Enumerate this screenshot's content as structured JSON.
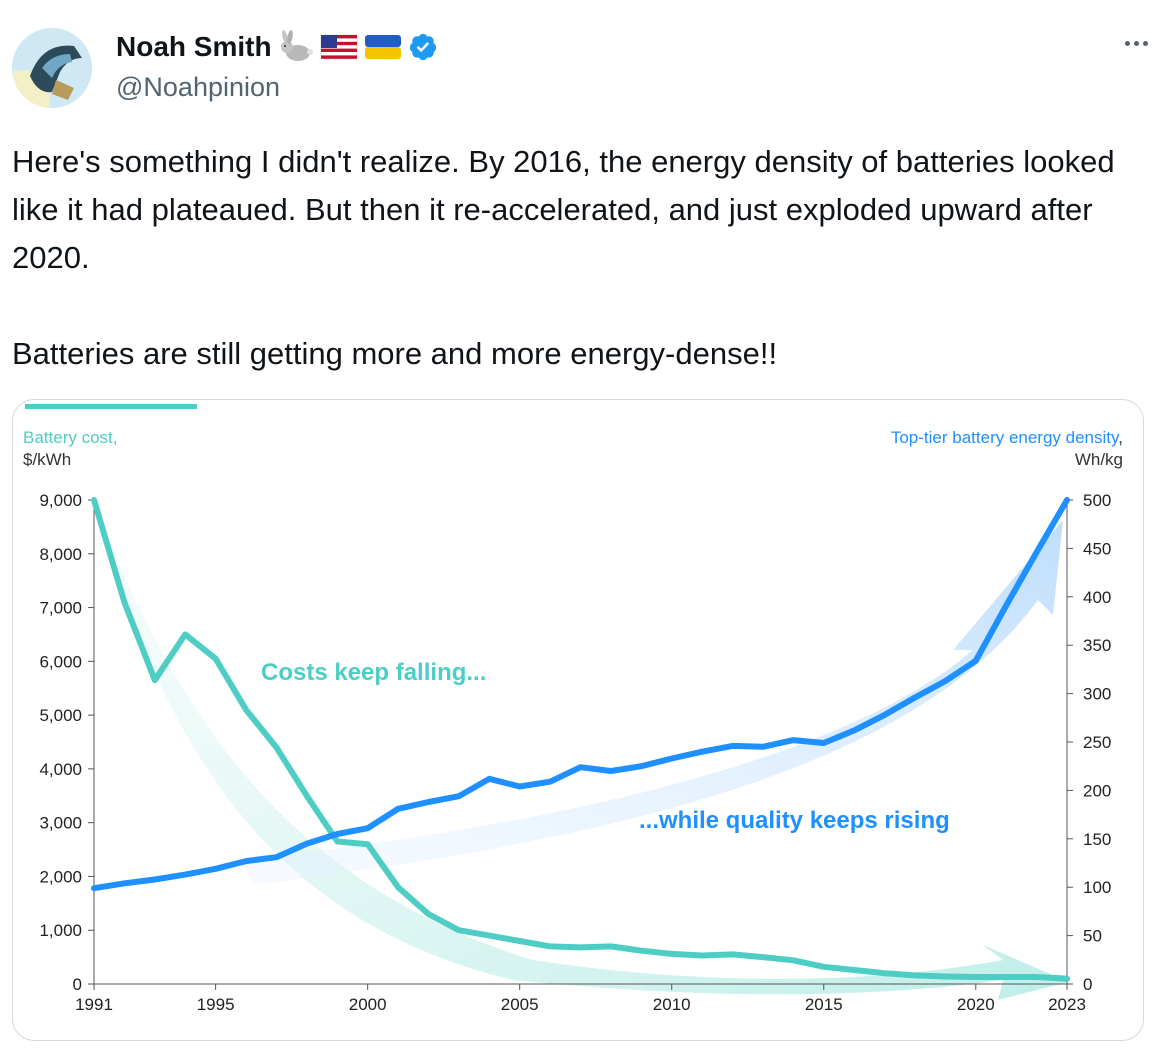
{
  "tweet": {
    "author_name": "Noah Smith",
    "author_handle": "@Noahpinion",
    "verified": true,
    "name_emojis": [
      "rabbit-emoji",
      "us-flag",
      "ukraine-flag"
    ],
    "paragraphs": [
      "Here's something I didn't realize. By 2016, the energy density of batteries looked like it had plateaued. But then it re-accelerated, and just exploded upward after 2020.",
      "Batteries are still getting more and more energy-dense!!"
    ]
  },
  "colors": {
    "cost": "#4ecdc4",
    "density": "#1e90ff",
    "verified": "#1d9bf0",
    "text": "#0f1419",
    "muted": "#536471"
  },
  "chart_data": {
    "type": "line",
    "left_axis_label_line1": "Battery cost,",
    "left_axis_label_line2": "$/kWh",
    "right_axis_label_line1": "Top-tier battery energy density",
    "right_axis_label_comma": ",",
    "right_axis_label_line2": "Wh/kg",
    "x_ticks": [
      1991,
      1995,
      2000,
      2005,
      2010,
      2015,
      2020,
      2023
    ],
    "xlim": [
      1991,
      2023
    ],
    "left_ylim": [
      0,
      9000
    ],
    "left_ticks": [
      0,
      1000,
      2000,
      3000,
      4000,
      5000,
      6000,
      7000,
      8000,
      9000
    ],
    "left_tick_labels": [
      "0",
      "1,000",
      "2,000",
      "3,000",
      "4,000",
      "5,000",
      "6,000",
      "7,000",
      "8,000",
      "9,000"
    ],
    "right_ylim": [
      0,
      500
    ],
    "right_ticks": [
      0,
      50,
      100,
      150,
      200,
      250,
      300,
      350,
      400,
      450,
      500
    ],
    "annotations": {
      "cost": "Costs keep falling...",
      "density": "...while quality keeps rising"
    },
    "series": [
      {
        "axis": "left",
        "x": [
          1991,
          1992,
          1993,
          1994,
          1995,
          1996,
          1997,
          1998,
          1999,
          2000,
          2001,
          2002,
          2003,
          2004,
          2005,
          2006,
          2007,
          2008,
          2009,
          2010,
          2011,
          2012,
          2013,
          2014,
          2015,
          2016,
          2017,
          2018,
          2019,
          2020,
          2021,
          2022,
          2023
        ],
        "values": [
          9000,
          7100,
          5650,
          6500,
          6050,
          5100,
          4400,
          3500,
          2650,
          2600,
          1800,
          1300,
          1000,
          900,
          800,
          700,
          680,
          700,
          620,
          560,
          530,
          550,
          500,
          440,
          320,
          260,
          200,
          160,
          140,
          130,
          130,
          130,
          100
        ]
      },
      {
        "axis": "right",
        "x": [
          1991,
          1992,
          1993,
          1994,
          1995,
          1996,
          1997,
          1998,
          1999,
          2000,
          2001,
          2002,
          2003,
          2004,
          2005,
          2006,
          2007,
          2008,
          2009,
          2010,
          2011,
          2012,
          2013,
          2014,
          2015,
          2016,
          2017,
          2018,
          2019,
          2020,
          2021,
          2022,
          2023
        ],
        "values": [
          99,
          104,
          108,
          113,
          119,
          127,
          131,
          145,
          155,
          161,
          181,
          188,
          194,
          212,
          204,
          209,
          224,
          220,
          225,
          233,
          240,
          246,
          245,
          252,
          249,
          262,
          278,
          296,
          313,
          334,
          391,
          446,
          500
        ]
      }
    ]
  }
}
